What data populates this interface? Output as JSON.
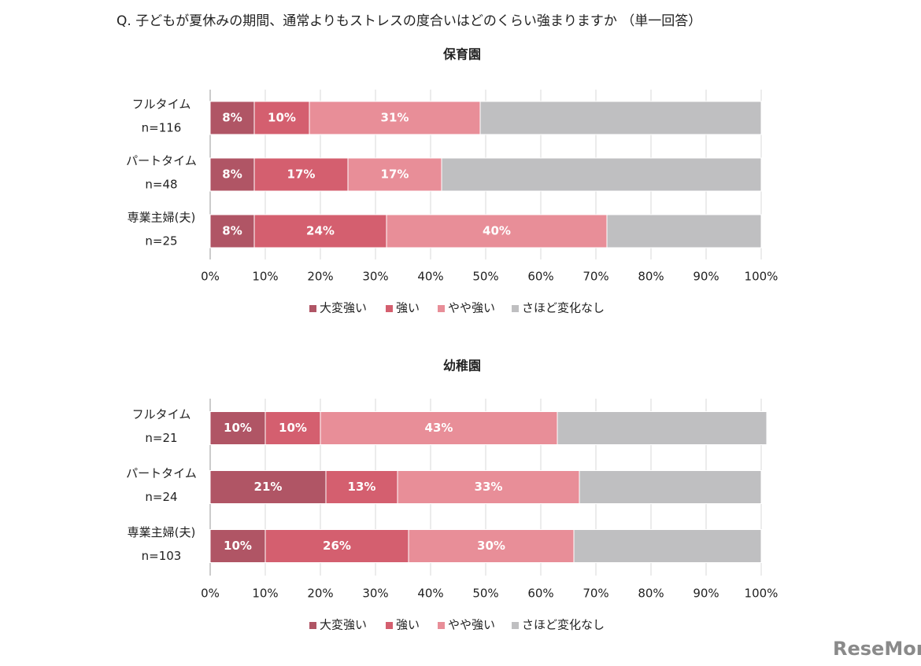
{
  "title": "Q. 子どもが夏休みの期間、通常よりもストレスの度合いはどのくらい強まりますか （単一回答）",
  "watermark": "ReseMom",
  "chart_data": [
    {
      "type": "bar",
      "orientation": "horizontal",
      "stacked": true,
      "title": "保育園",
      "categories": [
        "フルタイム",
        "パートタイム",
        "専業主婦(夫)"
      ],
      "sample_sizes": [
        "n=116",
        "n=48",
        "n=25"
      ],
      "series": [
        {
          "name": "大変強い",
          "color": "#b05565",
          "values": [
            8,
            8,
            8
          ],
          "value_labels": [
            "8%",
            "8%",
            "8%"
          ]
        },
        {
          "name": "強い",
          "color": "#d45f6f",
          "values": [
            10,
            17,
            24
          ],
          "value_labels": [
            "10%",
            "17%",
            "24%"
          ]
        },
        {
          "name": "やや強い",
          "color": "#e88e98",
          "values": [
            31,
            17,
            40
          ],
          "value_labels": [
            "31%",
            "17%",
            "40%"
          ]
        },
        {
          "name": "さほど変化なし",
          "color": "#bfbfc1",
          "values": [
            51,
            58,
            28
          ]
        }
      ],
      "xlim": [
        0,
        100
      ],
      "xticks": [
        {
          "value": 0,
          "label": "0%"
        },
        {
          "value": 10,
          "label": "10%"
        },
        {
          "value": 20,
          "label": "20%"
        },
        {
          "value": 30,
          "label": "30%"
        },
        {
          "value": 40,
          "label": "40%"
        },
        {
          "value": 50,
          "label": "50%"
        },
        {
          "value": 60,
          "label": "60%"
        },
        {
          "value": 70,
          "label": "70%"
        },
        {
          "value": 80,
          "label": "80%"
        },
        {
          "value": 90,
          "label": "90%"
        },
        {
          "value": 100,
          "label": "100%"
        }
      ],
      "grid": true,
      "legend": "bottom"
    },
    {
      "type": "bar",
      "orientation": "horizontal",
      "stacked": true,
      "title": "幼稚園",
      "categories": [
        "フルタイム",
        "パートタイム",
        "専業主婦(夫)"
      ],
      "sample_sizes": [
        "n=21",
        "n=24",
        "n=103"
      ],
      "series": [
        {
          "name": "大変強い",
          "color": "#b05565",
          "values": [
            10,
            21,
            10
          ],
          "value_labels": [
            "10%",
            "21%",
            "10%"
          ]
        },
        {
          "name": "強い",
          "color": "#d45f6f",
          "values": [
            10,
            13,
            26
          ],
          "value_labels": [
            "10%",
            "13%",
            "26%"
          ]
        },
        {
          "name": "やや強い",
          "color": "#e88e98",
          "values": [
            43,
            33,
            30
          ],
          "value_labels": [
            "43%",
            "33%",
            "30%"
          ]
        },
        {
          "name": "さほど変化なし",
          "color": "#bfbfc1",
          "values": [
            38,
            33,
            34
          ]
        }
      ],
      "xlim": [
        0,
        100
      ],
      "xticks": [
        {
          "value": 0,
          "label": "0%"
        },
        {
          "value": 10,
          "label": "10%"
        },
        {
          "value": 20,
          "label": "20%"
        },
        {
          "value": 30,
          "label": "30%"
        },
        {
          "value": 40,
          "label": "40%"
        },
        {
          "value": 50,
          "label": "50%"
        },
        {
          "value": 60,
          "label": "60%"
        },
        {
          "value": 70,
          "label": "70%"
        },
        {
          "value": 80,
          "label": "80%"
        },
        {
          "value": 90,
          "label": "90%"
        },
        {
          "value": 100,
          "label": "100%"
        }
      ],
      "grid": true,
      "legend": "bottom"
    }
  ]
}
